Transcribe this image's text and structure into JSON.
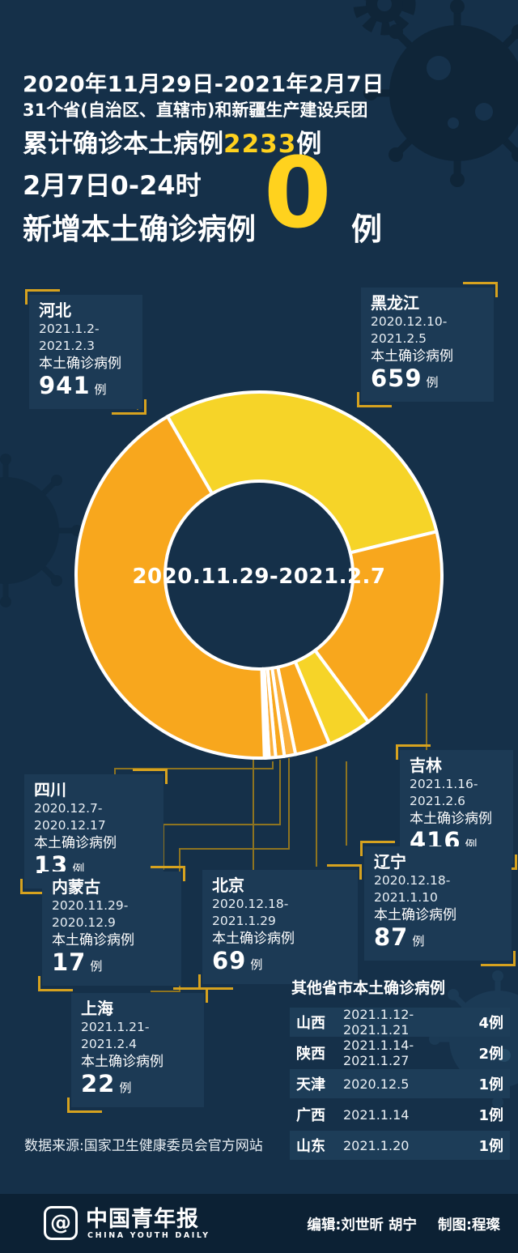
{
  "colors": {
    "background": "#153049",
    "panel": "#1C3A55",
    "row_highlight": "#1D3D58",
    "footer_bar": "#0C2134",
    "accent_yellow": "#FFD21E",
    "donut_orange": "#F8A71D",
    "donut_yellow": "#F6D428",
    "bracket_gold": "#D6A21F",
    "leader_line": "#8E7420"
  },
  "header": {
    "line1": "2020年11月29日-2021年2月7日",
    "line2": "31个省(自治区、直辖市)和新疆生产建设兵团",
    "line3_prefix": "累计确诊本土病例",
    "line3_number": "2233",
    "line3_suffix": "例",
    "line4": "2月7日0-24时",
    "line5": "新增本土确诊病例",
    "line5_number": "0",
    "line5_unit": "例"
  },
  "chart_data": {
    "type": "pie",
    "style": "donut",
    "center_label": "2020.11.29-2021.2.7",
    "total": 2233,
    "start_angle_deg": 330,
    "clockwise": true,
    "legend_position": "callout-boxes",
    "segments": [
      {
        "name": "黑龙江",
        "value": 659,
        "color": "#F6D428"
      },
      {
        "name": "吉林",
        "value": 416,
        "color": "#F8A71D"
      },
      {
        "name": "辽宁",
        "value": 87,
        "color": "#F6D428"
      },
      {
        "name": "北京",
        "value": 69,
        "color": "#F8A71D"
      },
      {
        "name": "上海",
        "value": 22,
        "color": "#FBB03B"
      },
      {
        "name": "内蒙古",
        "value": 17,
        "color": "#F8A71D"
      },
      {
        "name": "四川",
        "value": 13,
        "color": "#FBB03B"
      },
      {
        "name": "山西",
        "value": 4,
        "color": "#F6D428"
      },
      {
        "name": "陕西",
        "value": 2,
        "color": "#F8A71D"
      },
      {
        "name": "天津",
        "value": 1,
        "color": "#F6D428"
      },
      {
        "name": "广西",
        "value": 1,
        "color": "#F8A71D"
      },
      {
        "name": "山东",
        "value": 1,
        "color": "#F6D428"
      },
      {
        "name": "河北",
        "value": 941,
        "color": "#F8A71D"
      }
    ]
  },
  "callouts": {
    "hebei": {
      "name": "河北",
      "date": "2021.1.2-2021.2.3",
      "label": "本土确诊病例",
      "value": "941",
      "unit": "例"
    },
    "heilongjiang": {
      "name": "黑龙江",
      "date": "2020.12.10-2021.2.5",
      "label": "本土确诊病例",
      "value": "659",
      "unit": "例"
    },
    "jilin": {
      "name": "吉林",
      "date": "2021.1.16-2021.2.6",
      "label": "本土确诊病例",
      "value": "416",
      "unit": "例"
    },
    "liaoning": {
      "name": "辽宁",
      "date": "2020.12.18-2021.1.10",
      "label": "本土确诊病例",
      "value": "87",
      "unit": "例"
    },
    "beijing": {
      "name": "北京",
      "date": "2020.12.18-2021.1.29",
      "label": "本土确诊病例",
      "value": "69",
      "unit": "例"
    },
    "shanghai": {
      "name": "上海",
      "date": "2021.1.21-2021.2.4",
      "label": "本土确诊病例",
      "value": "22",
      "unit": "例"
    },
    "neimenggu": {
      "name": "内蒙古",
      "date": "2020.11.29-2020.12.9",
      "label": "本土确诊病例",
      "value": "17",
      "unit": "例"
    },
    "sichuan": {
      "name": "四川",
      "date": "2020.12.7-2020.12.17",
      "label": "本土确诊病例",
      "value": "13",
      "unit": "例"
    }
  },
  "others_table": {
    "title": "其他省市本土确诊病例",
    "rows": [
      {
        "name": "山西",
        "date": "2021.1.12-2021.1.21",
        "cases": "4例"
      },
      {
        "name": "陕西",
        "date": "2021.1.14-2021.1.27",
        "cases": "2例"
      },
      {
        "name": "天津",
        "date": "2020.12.5",
        "cases": "1例"
      },
      {
        "name": "广西",
        "date": "2021.1.14",
        "cases": "1例"
      },
      {
        "name": "山东",
        "date": "2021.1.20",
        "cases": "1例"
      }
    ]
  },
  "source_note": "数据来源:国家卫生健康委员会官方网站",
  "footer": {
    "logo_at": "@",
    "brand_cn": "中国青年报",
    "brand_en": "CHINA YOUTH DAILY",
    "credits_editor": "编辑:刘世昕 胡宁",
    "credits_design": "制图:程璨"
  }
}
